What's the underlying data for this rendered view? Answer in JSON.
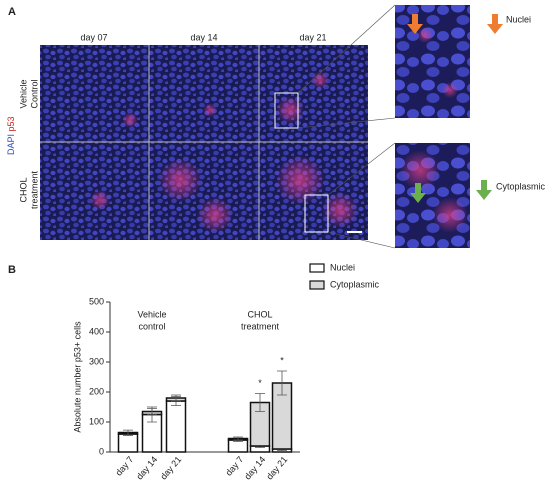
{
  "panel_a": {
    "label": "A",
    "columns": [
      "day 07",
      "day 14",
      "day 21"
    ],
    "stain": [
      "DAPI",
      "p53"
    ],
    "rows": [
      [
        "Vehicle",
        "Control"
      ],
      [
        "CHOL",
        "treatment"
      ]
    ],
    "callouts": [
      "Nuclei",
      "Cytoplasmic"
    ]
  },
  "chart_data": {
    "type": "bar",
    "panel_label": "B",
    "stacked": true,
    "y_label": "Absolute number p53+ cells",
    "categories": [
      "day 7",
      "day 14",
      "day 21",
      "day 7",
      "day 14",
      "day 21"
    ],
    "groups": [
      {
        "label": [
          "Vehicle",
          "control"
        ],
        "start": 0,
        "end": 2
      },
      {
        "label": [
          "CHOL",
          "treatment"
        ],
        "start": 3,
        "end": 5
      }
    ],
    "series": [
      {
        "name": "Nuclei",
        "color": "#ffffff",
        "values": [
          60,
          125,
          170,
          40,
          20,
          10
        ],
        "errors": [
          5,
          25,
          15,
          5,
          5,
          5
        ]
      },
      {
        "name": "Cytoplasmic",
        "color": "#d9d9d9",
        "values": [
          5,
          10,
          10,
          5,
          145,
          220
        ],
        "errors": [
          8,
          10,
          10,
          5,
          30,
          40
        ]
      }
    ],
    "annotations": [
      {
        "label": "*",
        "index": 4
      },
      {
        "label": "*",
        "index": 5
      }
    ],
    "ylim": [
      0,
      500
    ],
    "yticks": [
      0,
      100,
      200,
      300,
      400,
      500
    ],
    "legend": "top"
  }
}
